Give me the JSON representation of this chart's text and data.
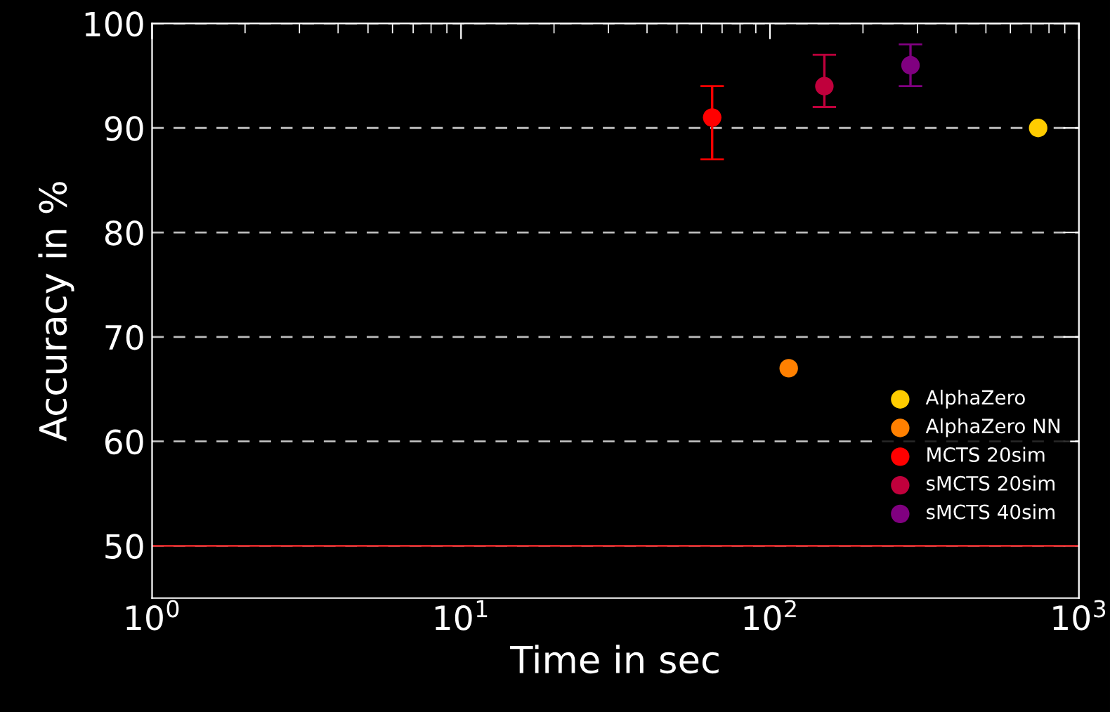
{
  "chart_data": {
    "type": "scatter",
    "xlabel": "Time in sec",
    "ylabel": "Accuracy in %",
    "log": "x",
    "xlim": [
      1,
      1000
    ],
    "xticks": [
      {
        "value": 1,
        "label": "10$^{0}$"
      },
      {
        "value": 10,
        "label": "10$^{1}$"
      },
      {
        "value": 100,
        "label": "10$^{2}$"
      },
      {
        "value": 1000,
        "label": "10$^{3}$"
      }
    ],
    "ylim": [
      45,
      100
    ],
    "yticks": [
      50,
      60,
      70,
      80,
      90,
      100
    ],
    "grid": "y",
    "legend": "bottom right",
    "marker": "circle",
    "ref_lines": [
      {
        "axis": "y",
        "value": 50,
        "color": "#d62728"
      }
    ],
    "series": [
      {
        "name": "AlphaZero",
        "color": "#ffcc00",
        "x": [
          738
        ],
        "values": [
          90
        ]
      },
      {
        "name": "AlphaZero NN",
        "color": "#ff8000",
        "x": [
          115
        ],
        "values": [
          67
        ]
      },
      {
        "name": "MCTS 20sim",
        "color": "#ff0000",
        "x": [
          65
        ],
        "values": [
          91
        ],
        "errors": [
          [
            87,
            94
          ]
        ]
      },
      {
        "name": "sMCTS 20sim",
        "color": "#c0003c",
        "x": [
          150
        ],
        "values": [
          94
        ],
        "errors": [
          [
            92,
            97
          ]
        ]
      },
      {
        "name": "sMCTS 40sim",
        "color": "#800080",
        "x": [
          285
        ],
        "values": [
          96
        ],
        "errors": [
          [
            94,
            98
          ]
        ]
      }
    ]
  }
}
